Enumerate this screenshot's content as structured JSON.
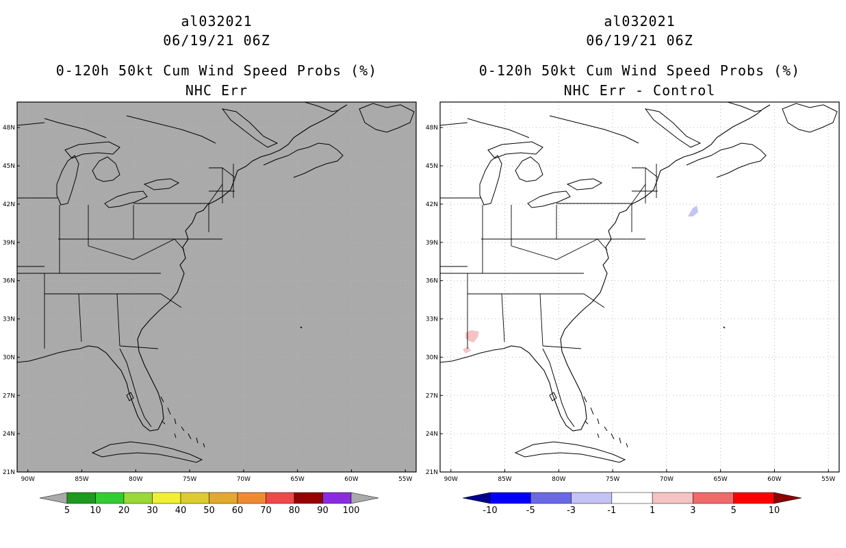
{
  "left_panel": {
    "storm_id": "al032021",
    "datetime": "06/19/21 06Z",
    "product": "0-120h 50kt Cum Wind Speed Probs (%)",
    "subtitle": "NHC Err",
    "background_color": "#aaaaaa",
    "colorbar": {
      "labels": [
        "5",
        "10",
        "20",
        "30",
        "40",
        "50",
        "60",
        "70",
        "80",
        "90",
        "100"
      ],
      "colors": [
        "#aaaaaa",
        "#1e9a1e",
        "#32cd32",
        "#9ad936",
        "#f0f032",
        "#ddcc2e",
        "#e1aa2e",
        "#f08a32",
        "#f04848",
        "#960000",
        "#8a2be2",
        "#aaaaaa"
      ]
    }
  },
  "right_panel": {
    "storm_id": "al032021",
    "datetime": "06/19/21 06Z",
    "product": "0-120h 50kt Cum Wind Speed Probs (%)",
    "subtitle": "NHC Err - Control",
    "background_color": "#ffffff",
    "colorbar": {
      "labels": [
        "-10",
        "-5",
        "-3",
        "-1",
        "1",
        "3",
        "5",
        "10"
      ],
      "colors": [
        "#00008b",
        "#0000ff",
        "#6a6ae6",
        "#c3c3f5",
        "#ffffff",
        "#f5c3c3",
        "#f06a6a",
        "#ff0000",
        "#8b0000"
      ]
    }
  },
  "map": {
    "lat_labels": [
      "48N",
      "45N",
      "42N",
      "39N",
      "36N",
      "33N",
      "30N",
      "27N",
      "24N",
      "21N"
    ],
    "lat_values": [
      48,
      45,
      42,
      39,
      36,
      33,
      30,
      27,
      24,
      21
    ],
    "lon_labels": [
      "90W",
      "85W",
      "80W",
      "75W",
      "70W",
      "65W",
      "60W",
      "55W"
    ],
    "lon_values": [
      -90,
      -85,
      -80,
      -75,
      -70,
      -65,
      -60,
      -55
    ],
    "lon_range": [
      -91,
      -54
    ],
    "lat_range": [
      21,
      50
    ]
  }
}
